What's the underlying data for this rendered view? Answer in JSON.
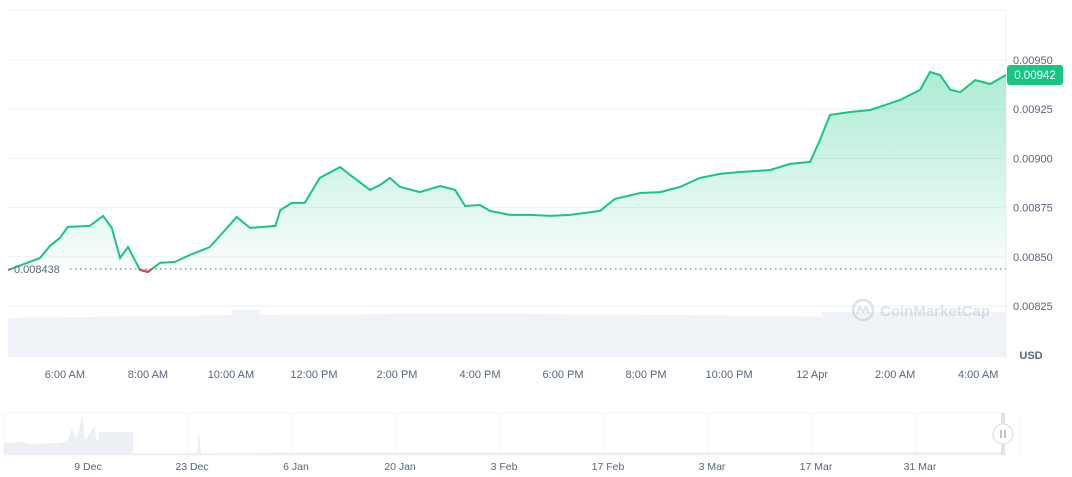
{
  "chart_data": {
    "type": "area",
    "currency": "USD",
    "x_unit": "hours since 00:00 Apr 11",
    "open_price_label": "0.008438",
    "open_price": 0.008438,
    "current_price_label": "0.00942",
    "watermark": "CoinMarketCap",
    "y_ticks": [
      "0.00950",
      "0.00925",
      "0.00900",
      "0.00875",
      "0.00850",
      "0.00825"
    ],
    "y_tick_values": [
      0.0095,
      0.00925,
      0.009,
      0.00875,
      0.0085,
      0.00825
    ],
    "ylim": [
      0.00825,
      0.0095
    ],
    "xlim": [
      4.63,
      28.67
    ],
    "x_ticks": [
      {
        "label": "6:00 AM",
        "h": 6
      },
      {
        "label": "8:00 AM",
        "h": 8
      },
      {
        "label": "10:00 AM",
        "h": 10
      },
      {
        "label": "12:00 PM",
        "h": 12
      },
      {
        "label": "2:00 PM",
        "h": 14
      },
      {
        "label": "4:00 PM",
        "h": 16
      },
      {
        "label": "6:00 PM",
        "h": 18
      },
      {
        "label": "8:00 PM",
        "h": 20
      },
      {
        "label": "10:00 PM",
        "h": 22
      },
      {
        "label": "12 Apr",
        "h": 24
      },
      {
        "label": "2:00 AM",
        "h": 26
      },
      {
        "label": "4:00 AM",
        "h": 28
      }
    ],
    "points": [
      [
        4.63,
        0.008433
      ],
      [
        5.4,
        0.008494
      ],
      [
        5.64,
        0.008555
      ],
      [
        5.88,
        0.008596
      ],
      [
        6.07,
        0.008652
      ],
      [
        6.6,
        0.008657
      ],
      [
        6.92,
        0.008708
      ],
      [
        7.13,
        0.008647
      ],
      [
        7.33,
        0.008494
      ],
      [
        7.52,
        0.00855
      ],
      [
        7.81,
        0.008433
      ],
      [
        8.0,
        0.008423
      ],
      [
        8.29,
        0.008469
      ],
      [
        8.65,
        0.008474
      ],
      [
        9.01,
        0.008509
      ],
      [
        9.49,
        0.00855
      ],
      [
        9.86,
        0.008636
      ],
      [
        10.14,
        0.008702
      ],
      [
        10.46,
        0.008647
      ],
      [
        11.07,
        0.008657
      ],
      [
        11.19,
        0.008738
      ],
      [
        11.47,
        0.008774
      ],
      [
        11.78,
        0.008774
      ],
      [
        12.14,
        0.008901
      ],
      [
        12.63,
        0.008956
      ],
      [
        12.87,
        0.008916
      ],
      [
        13.35,
        0.00884
      ],
      [
        13.59,
        0.008865
      ],
      [
        13.83,
        0.008901
      ],
      [
        14.07,
        0.008855
      ],
      [
        14.55,
        0.008829
      ],
      [
        15.04,
        0.00886
      ],
      [
        15.4,
        0.00884
      ],
      [
        15.64,
        0.008758
      ],
      [
        16.0,
        0.008763
      ],
      [
        16.24,
        0.008733
      ],
      [
        16.72,
        0.008713
      ],
      [
        17.2,
        0.008713
      ],
      [
        17.69,
        0.008708
      ],
      [
        18.17,
        0.008713
      ],
      [
        18.89,
        0.008733
      ],
      [
        19.25,
        0.008794
      ],
      [
        19.86,
        0.008824
      ],
      [
        20.34,
        0.008829
      ],
      [
        20.82,
        0.008855
      ],
      [
        21.3,
        0.008901
      ],
      [
        21.78,
        0.008921
      ],
      [
        22.27,
        0.008931
      ],
      [
        22.99,
        0.008941
      ],
      [
        23.47,
        0.008972
      ],
      [
        23.95,
        0.008982
      ],
      [
        24.19,
        0.009094
      ],
      [
        24.43,
        0.009221
      ],
      [
        24.92,
        0.009236
      ],
      [
        25.4,
        0.009246
      ],
      [
        26.12,
        0.009297
      ],
      [
        26.6,
        0.009348
      ],
      [
        26.84,
        0.009439
      ],
      [
        27.08,
        0.009424
      ],
      [
        27.33,
        0.009348
      ],
      [
        27.57,
        0.009337
      ],
      [
        27.93,
        0.009398
      ],
      [
        28.29,
        0.009378
      ],
      [
        28.67,
        0.009424
      ]
    ],
    "navigator_labels": [
      "9 Dec",
      "23 Dec",
      "6 Jan",
      "20 Jan",
      "3 Feb",
      "17 Feb",
      "3 Mar",
      "17 Mar",
      "31 Mar"
    ],
    "colors": {
      "up": "#16c784",
      "down": "#ea3943",
      "grid": "#eff2f5",
      "volume": "#eceff3",
      "axis_text": "#58667e"
    }
  }
}
